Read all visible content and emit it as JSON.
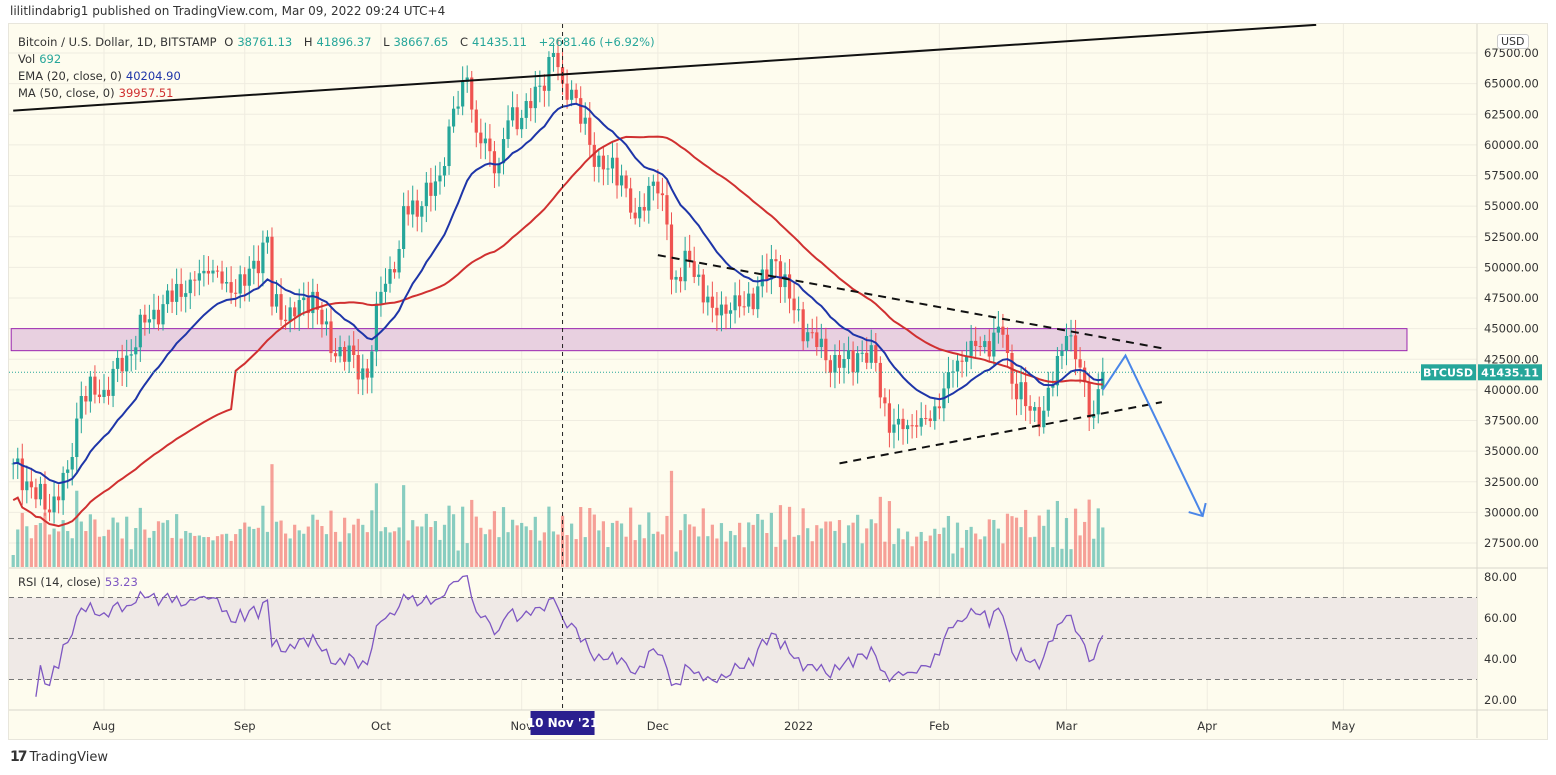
{
  "publisher_line": "lilitlindabrig1 published on TradingView.com, Mar 09, 2022 09:24 UTC+4",
  "legend": {
    "symbol": "Bitcoin / U.S. Dollar, 1D, BITSTAMP",
    "o_label": "O",
    "o": "38761.13",
    "h_label": "H",
    "h": "41896.37",
    "l_label": "L",
    "l": "38667.65",
    "c_label": "C",
    "c": "41435.11",
    "change": "+2681.46 (+6.92%)",
    "vol_label": "Vol",
    "vol": "692",
    "ema_label": "EMA (20, close, 0)",
    "ema": "40204.90",
    "ma_label": "MA (50, close, 0)",
    "ma": "39957.51",
    "rsi_label": "RSI (14, close)",
    "rsi": "53.23"
  },
  "currency": "USD",
  "price_tag": {
    "symbol": "BTCUSD",
    "price": "41435.11"
  },
  "crosshair_label": "10 Nov '21",
  "branding": "TradingView",
  "colors": {
    "up": "#26a69a",
    "down": "#ef5350",
    "ema": "#1e35a8",
    "ma": "#d03030",
    "rsi": "#7e57c2",
    "zone": "#e8d0e0",
    "zone_border": "#9c27b0",
    "projection": "#4a86e8",
    "crosshair_tag": "#2a1f8f"
  },
  "chart_data": {
    "type": "candlestick",
    "symbol": "BTCUSD",
    "interval": "1D",
    "ylim": [
      25000,
      69000
    ],
    "yticks": [
      27500,
      30000,
      32500,
      35000,
      37500,
      40000,
      42500,
      45000,
      47500,
      50000,
      52500,
      55000,
      57500,
      60000,
      62500,
      65000,
      67500
    ],
    "rsi_ticks": [
      20,
      40,
      60,
      80
    ],
    "rsi_bands": [
      30,
      50,
      70
    ],
    "xticks": [
      {
        "date": "2021-08-01",
        "label": "Aug"
      },
      {
        "date": "2021-09-01",
        "label": "Sep"
      },
      {
        "date": "2021-10-01",
        "label": "Oct"
      },
      {
        "date": "2021-11-01",
        "label": "Nov"
      },
      {
        "date": "2021-12-01",
        "label": "Dec"
      },
      {
        "date": "2022-01-01",
        "label": "2022"
      },
      {
        "date": "2022-02-01",
        "label": "Feb"
      },
      {
        "date": "2022-03-01",
        "label": "Mar"
      },
      {
        "date": "2022-04-01",
        "label": "Apr"
      },
      {
        "date": "2022-05-01",
        "label": "May"
      }
    ],
    "closes": [
      [
        "2021-07-12",
        34000
      ],
      [
        "2021-07-20",
        30000
      ],
      [
        "2021-07-24",
        33500
      ],
      [
        "2021-07-27",
        39500
      ],
      [
        "2021-08-01",
        40000
      ],
      [
        "2021-08-06",
        42800
      ],
      [
        "2021-08-10",
        45500
      ],
      [
        "2021-08-14",
        47000
      ],
      [
        "2021-08-20",
        49000
      ],
      [
        "2021-08-24",
        49500
      ],
      [
        "2021-08-28",
        48800
      ],
      [
        "2021-09-01",
        48500
      ],
      [
        "2021-09-06",
        52500
      ],
      [
        "2021-09-07",
        46800
      ],
      [
        "2021-09-12",
        46000
      ],
      [
        "2021-09-16",
        48000
      ],
      [
        "2021-09-20",
        43000
      ],
      [
        "2021-09-22",
        43500
      ],
      [
        "2021-09-28",
        41000
      ],
      [
        "2021-10-01",
        48000
      ],
      [
        "2021-10-05",
        51500
      ],
      [
        "2021-10-06",
        55000
      ],
      [
        "2021-10-10",
        55000
      ],
      [
        "2021-10-14",
        57500
      ],
      [
        "2021-10-16",
        61500
      ],
      [
        "2021-10-20",
        65500
      ],
      [
        "2021-10-22",
        61000
      ],
      [
        "2021-10-27",
        58500
      ],
      [
        "2021-10-29",
        62000
      ],
      [
        "2021-11-03",
        63000
      ],
      [
        "2021-11-08",
        67500
      ],
      [
        "2021-11-10",
        65000
      ],
      [
        "2021-11-12",
        64500
      ],
      [
        "2021-11-16",
        60000
      ],
      [
        "2021-11-19",
        58000
      ],
      [
        "2021-11-23",
        57500
      ],
      [
        "2021-11-26",
        54000
      ],
      [
        "2021-11-30",
        57000
      ],
      [
        "2021-12-03",
        53500
      ],
      [
        "2021-12-04",
        49000
      ],
      [
        "2021-12-08",
        50500
      ],
      [
        "2021-12-13",
        46700
      ],
      [
        "2021-12-17",
        46500
      ],
      [
        "2021-12-20",
        46800
      ],
      [
        "2021-12-27",
        50500
      ],
      [
        "2021-12-31",
        46500
      ],
      [
        "2022-01-05",
        43500
      ],
      [
        "2022-01-10",
        41800
      ],
      [
        "2022-01-14",
        43000
      ],
      [
        "2022-01-18",
        42200
      ],
      [
        "2022-01-21",
        36500
      ],
      [
        "2022-01-24",
        36800
      ],
      [
        "2022-01-28",
        37700
      ],
      [
        "2022-02-01",
        38500
      ],
      [
        "2022-02-04",
        41500
      ],
      [
        "2022-02-08",
        44000
      ],
      [
        "2022-02-10",
        43500
      ],
      [
        "2022-02-15",
        44500
      ],
      [
        "2022-02-17",
        40500
      ],
      [
        "2022-02-21",
        38300
      ],
      [
        "2022-02-24",
        38300
      ],
      [
        "2022-02-28",
        43200
      ],
      [
        "2022-03-01",
        44400
      ],
      [
        "2022-03-03",
        42500
      ],
      [
        "2022-03-07",
        38000
      ],
      [
        "2022-03-09",
        41435.11
      ]
    ],
    "drawings": {
      "long_trendline": [
        [
          "2021-07-12",
          62800
        ],
        [
          "2022-04-25",
          69800
        ]
      ],
      "resistance_dashed": [
        [
          "2021-12-01",
          51000
        ],
        [
          "2022-03-22",
          43400
        ]
      ],
      "support_dashed": [
        [
          "2022-01-10",
          34000
        ],
        [
          "2022-03-22",
          39000
        ]
      ],
      "zone": {
        "from": "2021-07-12",
        "to": "2022-05-15",
        "low": 43200,
        "high": 45000
      },
      "projection": [
        [
          "2022-03-09",
          40000
        ],
        [
          "2022-03-14",
          42800
        ],
        [
          "2022-03-31",
          29700
        ]
      ],
      "crosshair_date": "2021-11-10"
    }
  }
}
